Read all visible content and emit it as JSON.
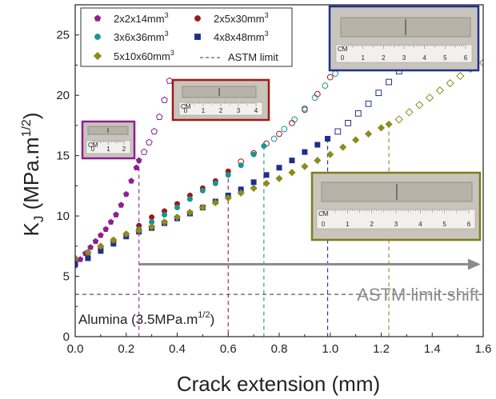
{
  "chart_data": {
    "type": "scatter",
    "xlabel": "Crack extension (mm)",
    "ylabel": "K",
    "ylabel_sub": "J",
    "ylabel_unit": " (MPa.m",
    "ylabel_exp": "1/2",
    "ylabel_close": ")",
    "xlim": [
      0,
      1.6
    ],
    "ylim": [
      0,
      27.5
    ],
    "xticks": [
      0.0,
      0.2,
      0.4,
      0.6,
      0.8,
      1.0,
      1.2,
      1.4,
      1.6
    ],
    "xtick_labels": [
      "0.0",
      "0.2",
      "0.4",
      "0.6",
      "0.8",
      "1.0",
      "1.2",
      "1.4",
      "1.6"
    ],
    "yticks": [
      0,
      5,
      10,
      15,
      20,
      25
    ],
    "ytick_labels": [
      "0",
      "5",
      "10",
      "15",
      "20",
      "25"
    ],
    "legend_placement": "top-left",
    "series": [
      {
        "name": "2x2x14mm",
        "name_exp": "3",
        "color": "#8e1f93",
        "marker": "pentagon",
        "limit_x": 0.25,
        "filled": [
          [
            0.0,
            5.9
          ],
          [
            0.02,
            6.4
          ],
          [
            0.04,
            6.9
          ],
          [
            0.06,
            7.4
          ],
          [
            0.08,
            7.9
          ],
          [
            0.1,
            8.4
          ],
          [
            0.12,
            8.9
          ],
          [
            0.14,
            9.5
          ],
          [
            0.16,
            10.1
          ],
          [
            0.18,
            10.9
          ],
          [
            0.2,
            11.8
          ],
          [
            0.22,
            12.9
          ],
          [
            0.24,
            14.0
          ],
          [
            0.25,
            14.6
          ]
        ],
        "open": [
          [
            0.27,
            15.3
          ],
          [
            0.29,
            16.1
          ],
          [
            0.31,
            17.0
          ],
          [
            0.33,
            18.2
          ],
          [
            0.35,
            19.6
          ],
          [
            0.37,
            21.2
          ],
          [
            0.39,
            23.0
          ],
          [
            0.4,
            24.2
          ]
        ]
      },
      {
        "name": "2x5x30mm",
        "name_exp": "3",
        "color": "#9e1a1a",
        "marker": "circle",
        "limit_x": 0.6,
        "filled": [
          [
            0.0,
            6.2
          ],
          [
            0.05,
            6.9
          ],
          [
            0.1,
            7.4
          ],
          [
            0.15,
            8.0
          ],
          [
            0.2,
            8.5
          ],
          [
            0.25,
            9.2
          ],
          [
            0.3,
            9.9
          ],
          [
            0.35,
            10.4
          ],
          [
            0.4,
            11.0
          ],
          [
            0.45,
            11.7
          ],
          [
            0.5,
            12.3
          ],
          [
            0.55,
            12.9
          ],
          [
            0.6,
            13.7
          ]
        ],
        "open": [
          [
            0.65,
            14.5
          ],
          [
            0.7,
            15.2
          ],
          [
            0.75,
            16.0
          ],
          [
            0.8,
            16.8
          ],
          [
            0.85,
            17.7
          ],
          [
            0.9,
            18.8
          ],
          [
            0.95,
            20.1
          ],
          [
            1.0,
            21.5
          ],
          [
            1.05,
            22.9
          ],
          [
            1.1,
            24.2
          ]
        ]
      },
      {
        "name": "3x6x36mm",
        "name_exp": "3",
        "color": "#1a9494",
        "marker": "circle",
        "limit_x": 0.74,
        "filled": [
          [
            0.0,
            6.1
          ],
          [
            0.05,
            6.6
          ],
          [
            0.1,
            7.2
          ],
          [
            0.15,
            7.8
          ],
          [
            0.2,
            8.5
          ],
          [
            0.25,
            8.9
          ],
          [
            0.3,
            9.5
          ],
          [
            0.35,
            10.1
          ],
          [
            0.4,
            10.7
          ],
          [
            0.45,
            11.4
          ],
          [
            0.5,
            12.1
          ],
          [
            0.55,
            12.7
          ],
          [
            0.6,
            13.4
          ],
          [
            0.65,
            14.2
          ],
          [
            0.7,
            15.1
          ],
          [
            0.74,
            15.8
          ]
        ],
        "open": [
          [
            0.78,
            16.4
          ],
          [
            0.82,
            17.2
          ],
          [
            0.86,
            18.0
          ],
          [
            0.9,
            18.9
          ],
          [
            0.94,
            19.8
          ],
          [
            0.98,
            20.8
          ],
          [
            1.02,
            21.8
          ],
          [
            1.06,
            22.9
          ],
          [
            1.1,
            24.0
          ],
          [
            1.14,
            25.1
          ],
          [
            1.18,
            26.1
          ]
        ]
      },
      {
        "name": "4x8x48mm",
        "name_exp": "3",
        "color": "#1f2f8c",
        "marker": "square",
        "limit_x": 0.99,
        "filled": [
          [
            0.0,
            6.0
          ],
          [
            0.05,
            6.5
          ],
          [
            0.1,
            7.1
          ],
          [
            0.15,
            7.7
          ],
          [
            0.2,
            8.3
          ],
          [
            0.25,
            8.7
          ],
          [
            0.3,
            9.0
          ],
          [
            0.35,
            9.4
          ],
          [
            0.4,
            9.8
          ],
          [
            0.45,
            10.2
          ],
          [
            0.5,
            10.7
          ],
          [
            0.55,
            11.2
          ],
          [
            0.6,
            11.7
          ],
          [
            0.65,
            12.2
          ],
          [
            0.7,
            12.8
          ],
          [
            0.75,
            13.4
          ],
          [
            0.8,
            14.0
          ],
          [
            0.85,
            14.6
          ],
          [
            0.9,
            15.3
          ],
          [
            0.95,
            15.9
          ],
          [
            0.99,
            16.4
          ]
        ],
        "open": [
          [
            1.03,
            17.0
          ],
          [
            1.07,
            17.7
          ],
          [
            1.11,
            18.5
          ],
          [
            1.15,
            19.3
          ],
          [
            1.19,
            20.2
          ],
          [
            1.23,
            21.1
          ],
          [
            1.27,
            22.0
          ],
          [
            1.31,
            22.9
          ],
          [
            1.35,
            23.8
          ],
          [
            1.39,
            24.8
          ],
          [
            1.43,
            25.8
          ],
          [
            1.47,
            26.8
          ]
        ]
      },
      {
        "name": "5x10x60mm",
        "name_exp": "3",
        "color": "#8b8b1f",
        "marker": "diamond",
        "limit_x": 1.23,
        "filled": [
          [
            0.0,
            6.5
          ],
          [
            0.05,
            7.0
          ],
          [
            0.1,
            7.5
          ],
          [
            0.15,
            8.0
          ],
          [
            0.2,
            8.5
          ],
          [
            0.25,
            8.8
          ],
          [
            0.3,
            9.1
          ],
          [
            0.35,
            9.5
          ],
          [
            0.4,
            9.9
          ],
          [
            0.45,
            10.3
          ],
          [
            0.5,
            10.7
          ],
          [
            0.55,
            11.1
          ],
          [
            0.6,
            11.5
          ],
          [
            0.65,
            11.9
          ],
          [
            0.7,
            12.3
          ],
          [
            0.75,
            12.7
          ],
          [
            0.8,
            13.1
          ],
          [
            0.85,
            13.6
          ],
          [
            0.9,
            14.1
          ],
          [
            0.95,
            14.6
          ],
          [
            1.0,
            15.1
          ],
          [
            1.05,
            15.7
          ],
          [
            1.1,
            16.3
          ],
          [
            1.15,
            16.8
          ],
          [
            1.2,
            17.3
          ],
          [
            1.23,
            17.6
          ]
        ],
        "open": [
          [
            1.27,
            18.0
          ],
          [
            1.31,
            18.6
          ],
          [
            1.35,
            19.2
          ],
          [
            1.39,
            19.8
          ],
          [
            1.43,
            20.4
          ],
          [
            1.47,
            21.0
          ],
          [
            1.51,
            21.6
          ],
          [
            1.55,
            22.2
          ],
          [
            1.6,
            22.7
          ]
        ]
      }
    ],
    "astm_limit": {
      "name": "ASTM limit",
      "y": 3.5
    },
    "annotations": {
      "shift_text": "ASTM limit shift",
      "arrow_from_x": 0.25,
      "arrow_to_x": 1.54,
      "arrow_y": 6.0,
      "material_text": "Alumina (3.5MPa.m",
      "material_exp": "1/2",
      "material_close": ")"
    },
    "photos": [
      {
        "border_color": "#8e1f93",
        "ruler": [
          "0",
          "1",
          "2"
        ],
        "cm": "CM"
      },
      {
        "border_color": "#9e1a1a",
        "ruler": [
          "0",
          "1",
          "2",
          "3",
          "4"
        ],
        "cm": "CM"
      },
      {
        "border_color": "#1f2f8c",
        "ruler": [
          "0",
          "1",
          "2",
          "3",
          "4",
          "5",
          "6"
        ],
        "cm": "CM"
      },
      {
        "border_color": "#7d7d1a",
        "ruler": [
          "0",
          "1",
          "2",
          "3",
          "4",
          "5",
          "6"
        ],
        "cm": "CM"
      }
    ]
  }
}
